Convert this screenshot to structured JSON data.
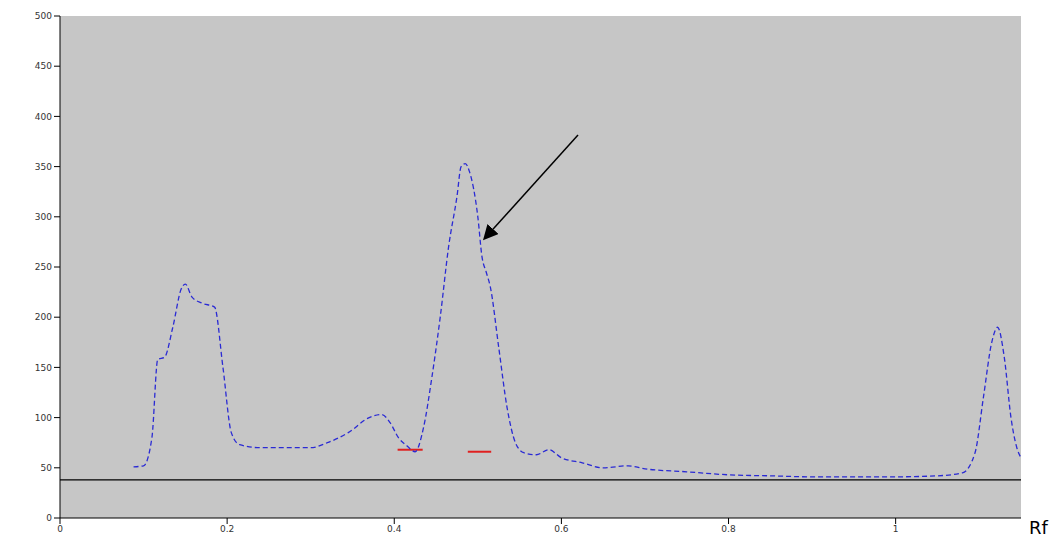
{
  "chart_data": {
    "type": "line",
    "x_label": "Rf",
    "x": [
      0.088,
      0.1,
      0.11,
      0.117,
      0.125,
      0.135,
      0.145,
      0.15,
      0.158,
      0.17,
      0.185,
      0.195,
      0.205,
      0.215,
      0.24,
      0.3,
      0.32,
      0.345,
      0.37,
      0.385,
      0.395,
      0.405,
      0.415,
      0.425,
      0.435,
      0.445,
      0.455,
      0.465,
      0.475,
      0.48,
      0.485,
      0.49,
      0.5,
      0.505,
      0.51,
      0.515,
      0.525,
      0.535,
      0.545,
      0.555,
      0.57,
      0.585,
      0.6,
      0.625,
      0.65,
      0.68,
      0.7,
      0.75,
      0.8,
      0.85,
      0.9,
      0.95,
      1.0,
      1.05,
      1.08,
      1.095,
      1.105,
      1.115,
      1.122,
      1.13,
      1.138,
      1.145,
      1.15
    ],
    "values": [
      51,
      52,
      80,
      158,
      160,
      190,
      228,
      233,
      220,
      214,
      210,
      150,
      85,
      73,
      70,
      70,
      75,
      85,
      100,
      103,
      95,
      80,
      72,
      66,
      90,
      140,
      200,
      270,
      320,
      350,
      353,
      345,
      300,
      260,
      245,
      230,
      170,
      110,
      75,
      65,
      63,
      68,
      60,
      55,
      50,
      52,
      49,
      46,
      43,
      42,
      41,
      41,
      41,
      42,
      45,
      65,
      120,
      175,
      190,
      160,
      100,
      70,
      60
    ],
    "color": "#2a2ad4",
    "line_style": "dashed",
    "xlim": [
      0,
      1.15
    ],
    "xticks": [
      0,
      0.2,
      0.4,
      0.6,
      0.8,
      1
    ],
    "ylim": [
      0,
      500
    ],
    "yticks": [
      0,
      50,
      100,
      150,
      200,
      250,
      300,
      350,
      400,
      450,
      500
    ],
    "grid": false,
    "baseline": 38,
    "peak_marks": [
      {
        "x": [
          0.404,
          0.434
        ],
        "y": 68
      },
      {
        "x": [
          0.488,
          0.516
        ],
        "y": 66
      }
    ]
  }
}
